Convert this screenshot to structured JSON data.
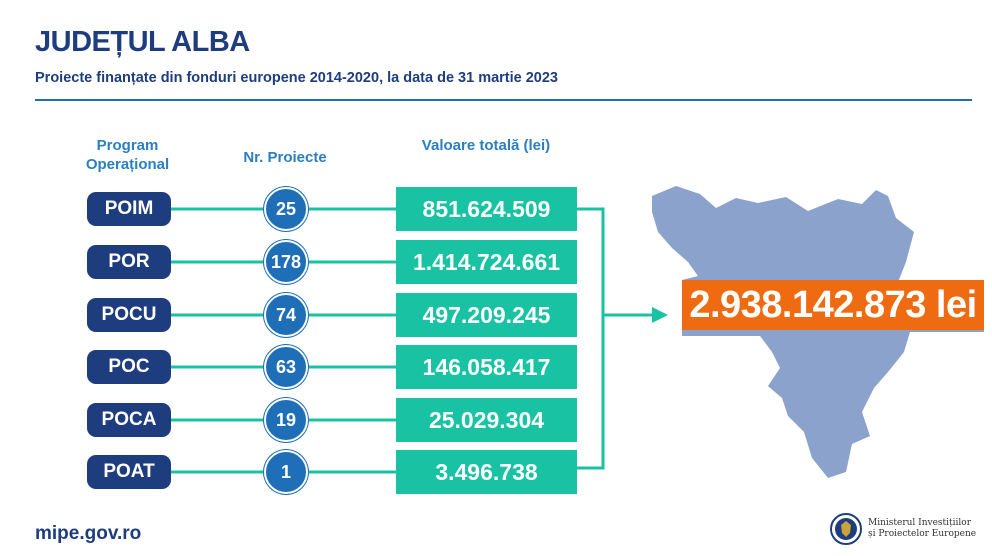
{
  "header": {
    "title": "JUDEȚUL ALBA",
    "subtitle": "Proiecte finanțate din fonduri europene 2014-2020, la data de 31 martie 2023"
  },
  "columns": {
    "program": "Program Operațional",
    "count": "Nr. Proiecte",
    "value": "Valoare totală (lei)"
  },
  "rows": [
    {
      "program": "POIM",
      "count": "25",
      "value": "851.624.509"
    },
    {
      "program": "POR",
      "count": "178",
      "value": "1.414.724.661"
    },
    {
      "program": "POCU",
      "count": "74",
      "value": "497.209.245"
    },
    {
      "program": "POC",
      "count": "63",
      "value": "146.058.417"
    },
    {
      "program": "POCA",
      "count": "19",
      "value": "25.029.304"
    },
    {
      "program": "POAT",
      "count": "1",
      "value": "3.496.738"
    }
  ],
  "total": "2.938.142.873 lei",
  "footer": {
    "url": "mipe.gov.ro",
    "ministry_line1": "Ministerul Investițiilor",
    "ministry_line2": "și Proiectelor Europene"
  },
  "colors": {
    "navy": "#1d3d7f",
    "blue": "#1e6fb8",
    "teal": "#19c2a2",
    "orange": "#ee6b12",
    "map": "#8ba3cc"
  }
}
